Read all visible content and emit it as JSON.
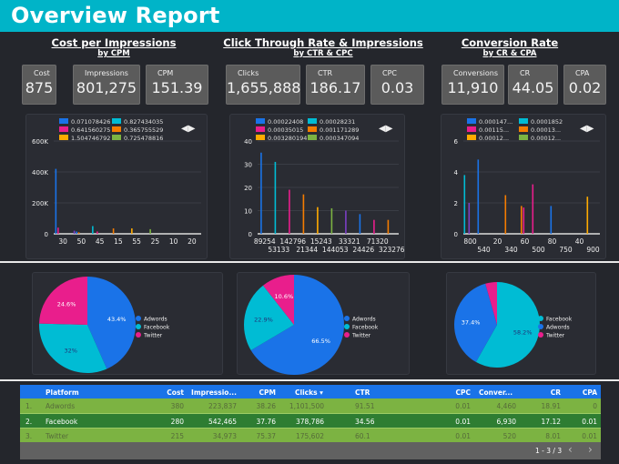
{
  "header": {
    "title": "Overview Report"
  },
  "sections": [
    {
      "title": "Cost per Impressions",
      "subtitle": "by CPM"
    },
    {
      "title": "Click Through Rate & Impressions",
      "subtitle": "by CTR & CPC"
    },
    {
      "title": "Conversion Rate ",
      "subtitle": "by CR & CPA"
    }
  ],
  "kpis": [
    {
      "label": "Cost",
      "value": "875"
    },
    {
      "label": "Impressions",
      "value": "801,275"
    },
    {
      "label": "CPM",
      "value": "151.39"
    },
    {
      "label": "Clicks",
      "value": "1,655,888"
    },
    {
      "label": "CTR",
      "value": "186.17"
    },
    {
      "label": "CPC",
      "value": "0.03"
    },
    {
      "label": "Conversions",
      "value": "11,910"
    },
    {
      "label": "CR",
      "value": "44.05"
    },
    {
      "label": "CPA",
      "value": "0.02"
    }
  ],
  "colors": {
    "blue": "#1a73e8",
    "teal": "#00bcd4",
    "pink": "#e91e8c",
    "orange": "#f57c00",
    "yellow": "#ffab00",
    "green": "#7cb342",
    "purple": "#7b3fc4",
    "header": "#00b4c8"
  },
  "chart_data": [
    {
      "type": "bar",
      "legend": [
        "0.071078426",
        "0.827434035",
        "0.641560275",
        "0.365755529",
        "1.504746792",
        "0.725478816"
      ],
      "categories": [
        "30",
        "50",
        "45",
        "15",
        "55",
        "25",
        "10",
        "20"
      ],
      "yticks": [
        "0",
        "200K",
        "400K",
        "600K"
      ],
      "ylim": [
        0,
        600000
      ],
      "bars": [
        [
          0,
          -1,
          420000,
          "blue"
        ],
        [
          0,
          0,
          40000,
          "pink"
        ],
        [
          1,
          -1,
          20000,
          "purple"
        ],
        [
          1,
          0,
          15000,
          "blue"
        ],
        [
          1,
          1,
          10000,
          "orange"
        ],
        [
          2,
          -1,
          50000,
          "teal"
        ],
        [
          2,
          1,
          15000,
          "pink"
        ],
        [
          3,
          0,
          35000,
          "orange"
        ],
        [
          4,
          0,
          35000,
          "yellow"
        ],
        [
          5,
          0,
          30000,
          "green"
        ]
      ]
    },
    {
      "type": "bar",
      "legend": [
        "0.00022408",
        "0.00028231",
        "0.00035015",
        "0.001171289",
        "0.003280194",
        "0.000347094"
      ],
      "categories": [
        "89254",
        "53133",
        "142796",
        "21344",
        "15243",
        "144053",
        "33321",
        "24426",
        "71320",
        "323276"
      ],
      "yticks": [
        "0",
        "10",
        "20",
        "30",
        "40"
      ],
      "ylim": [
        0,
        40
      ],
      "bars": [
        [
          0,
          0,
          35,
          "blue"
        ],
        [
          1,
          0,
          31,
          "teal"
        ],
        [
          2,
          0,
          19,
          "pink"
        ],
        [
          3,
          0,
          17,
          "orange"
        ],
        [
          4,
          0,
          11.5,
          "yellow"
        ],
        [
          5,
          0,
          11,
          "green"
        ],
        [
          6,
          0,
          10,
          "purple"
        ],
        [
          7,
          0,
          8.5,
          "blue"
        ],
        [
          8,
          0,
          6,
          "pink"
        ],
        [
          9,
          0,
          6,
          "orange"
        ]
      ]
    },
    {
      "type": "bar",
      "legend": [
        "0.000147...",
        "0.0001852",
        "0.00115...",
        "0.00013...",
        "0.00012...",
        "0.00012..."
      ],
      "categories": [
        "800",
        "540",
        "20",
        "340",
        "60",
        "500",
        "80",
        "750",
        "40",
        "900"
      ],
      "yticks": [
        "0",
        "2",
        "4",
        "6"
      ],
      "ylim": [
        0,
        6
      ],
      "bars": [
        [
          0,
          -1,
          3.8,
          "teal"
        ],
        [
          0,
          1,
          2,
          "purple"
        ],
        [
          1,
          -1,
          4.8,
          "blue"
        ],
        [
          3,
          -1,
          2.5,
          "orange"
        ],
        [
          4,
          0,
          1.8,
          "orange"
        ],
        [
          4,
          1,
          1.7,
          "pink"
        ],
        [
          5,
          -1,
          3.2,
          "pink"
        ],
        [
          6,
          1,
          1.8,
          "blue"
        ],
        [
          9,
          -1,
          2.4,
          "yellow"
        ]
      ]
    },
    {
      "type": "pie",
      "slices": [
        {
          "name": "Adwords",
          "value": 43.4,
          "label": "43.4%",
          "color": "blue"
        },
        {
          "name": "Facebook",
          "value": 32,
          "label": "32%",
          "color": "teal"
        },
        {
          "name": "Twitter",
          "value": 24.6,
          "label": "24.6%",
          "color": "pink"
        }
      ]
    },
    {
      "type": "pie",
      "slices": [
        {
          "name": "Adwords",
          "value": 66.5,
          "label": "66.5%",
          "color": "blue"
        },
        {
          "name": "Facebook",
          "value": 22.9,
          "label": "22.9%",
          "color": "teal"
        },
        {
          "name": "Twitter",
          "value": 10.6,
          "label": "10.6%",
          "color": "pink"
        }
      ]
    },
    {
      "type": "pie",
      "slices": [
        {
          "name": "Facebook",
          "value": 58.2,
          "label": "58.2%",
          "color": "teal"
        },
        {
          "name": "Adwords",
          "value": 37.4,
          "label": "37.4%",
          "color": "blue"
        },
        {
          "name": "Twitter",
          "value": 4.4,
          "label": "",
          "color": "pink"
        }
      ]
    }
  ],
  "table": {
    "columns": [
      "Platform",
      "Cost",
      "Impressio...",
      "CPM",
      "Clicks ▾",
      "CTR",
      "CPC",
      "Conver...",
      "CR",
      "CPA"
    ],
    "rows": [
      [
        "1.",
        "Adwords",
        "380",
        "223,837",
        "38.26",
        "1,101,500",
        "91.51",
        "0.01",
        "4,460",
        "18.91",
        "0"
      ],
      [
        "2.",
        "Facebook",
        "280",
        "542,465",
        "37.76",
        "378,786",
        "34.56",
        "0.01",
        "6,930",
        "17.12",
        "0.01"
      ],
      [
        "3.",
        "Twitter",
        "215",
        "34,973",
        "75.37",
        "175,602",
        "60.1",
        "0.01",
        "520",
        "8.01",
        "0.01"
      ]
    ],
    "pagination": "1 - 3 / 3",
    "prev": "‹",
    "next": "›"
  }
}
